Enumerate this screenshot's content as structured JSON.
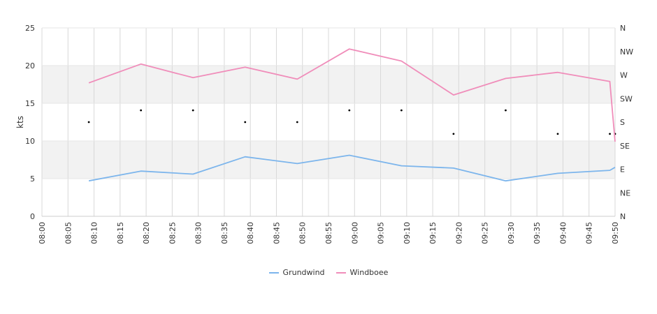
{
  "chart_data": {
    "type": "line",
    "ylabel": "kts",
    "ylim": [
      0,
      25
    ],
    "yticks": [
      "0",
      "5",
      "10",
      "15",
      "20",
      "25"
    ],
    "y2_labels": [
      "N",
      "NE",
      "E",
      "SE",
      "S",
      "SW",
      "W",
      "NW",
      "N"
    ],
    "x_ticks": [
      "08:00",
      "08:05",
      "08:10",
      "08:15",
      "08:20",
      "08:25",
      "08:30",
      "08:35",
      "08:40",
      "08:45",
      "08:50",
      "08:55",
      "09:00",
      "09:05",
      "09:10",
      "09:15",
      "09:20",
      "09:25",
      "09:30",
      "09:35",
      "09:40",
      "09:45",
      "09:50"
    ],
    "x_range": [
      "08:00",
      "09:50"
    ],
    "grid": true,
    "legend_position": "bottom",
    "series": [
      {
        "name": "Grundwind",
        "color": "#7cb5ec",
        "points": [
          [
            "08:09",
            4.7
          ],
          [
            "08:19",
            6.0
          ],
          [
            "08:29",
            5.6
          ],
          [
            "08:39",
            7.9
          ],
          [
            "08:49",
            7.0
          ],
          [
            "08:59",
            8.1
          ],
          [
            "09:09",
            6.7
          ],
          [
            "09:19",
            6.4
          ],
          [
            "09:29",
            4.7
          ],
          [
            "09:39",
            5.7
          ],
          [
            "09:49",
            6.1
          ],
          [
            "09:50",
            6.5
          ]
        ]
      },
      {
        "name": "Windboee",
        "color": "#f08dba",
        "points": [
          [
            "08:09",
            17.7
          ],
          [
            "08:19",
            20.2
          ],
          [
            "08:29",
            18.4
          ],
          [
            "08:39",
            19.8
          ],
          [
            "08:49",
            18.2
          ],
          [
            "08:59",
            22.2
          ],
          [
            "09:09",
            20.6
          ],
          [
            "09:19",
            16.1
          ],
          [
            "09:29",
            18.3
          ],
          [
            "09:39",
            19.1
          ],
          [
            "09:49",
            17.9
          ],
          [
            "09:50",
            9.9
          ]
        ]
      }
    ],
    "direction_points": [
      [
        "08:09",
        "S"
      ],
      [
        "08:19",
        "SSW"
      ],
      [
        "08:29",
        "SSW"
      ],
      [
        "08:39",
        "S"
      ],
      [
        "08:49",
        "S"
      ],
      [
        "08:59",
        "SSW"
      ],
      [
        "09:09",
        "SSW"
      ],
      [
        "09:19",
        "SSE"
      ],
      [
        "09:29",
        "SSW"
      ],
      [
        "09:39",
        "SSE"
      ],
      [
        "09:49",
        "SSE"
      ],
      [
        "09:50",
        "SSE"
      ]
    ]
  }
}
